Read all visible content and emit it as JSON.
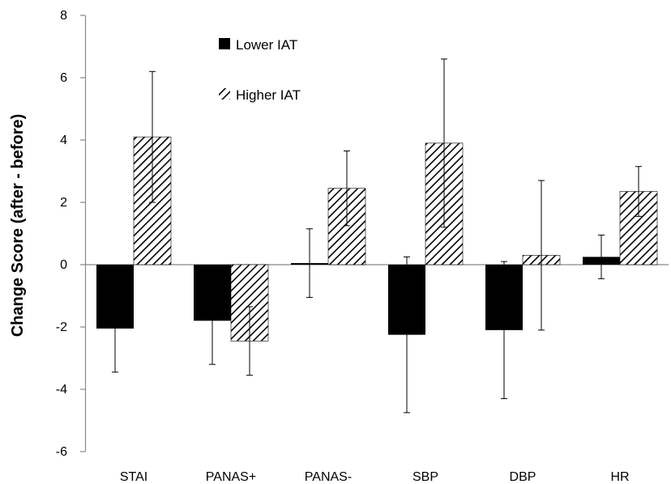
{
  "chart_data": {
    "type": "bar",
    "title": "",
    "xlabel": "",
    "ylabel": "Change Score (after - before)",
    "ylim": [
      -6,
      8
    ],
    "yticks": [
      -6,
      -4,
      -2,
      0,
      2,
      4,
      6,
      8
    ],
    "grid": false,
    "legend_position": "top-left",
    "categories": [
      "STAI",
      "PANAS+",
      "PANAS-",
      "SBP",
      "DBP",
      "HR"
    ],
    "series": [
      {
        "name": "Lower IAT",
        "fill": "solid",
        "color": "#000000",
        "values": [
          -2.05,
          -1.8,
          0.05,
          -2.25,
          -2.1,
          0.25
        ],
        "errors": [
          1.4,
          1.4,
          1.1,
          2.5,
          2.2,
          0.7
        ]
      },
      {
        "name": "Higher IAT",
        "fill": "hatched",
        "color": "#000000",
        "values": [
          4.1,
          -2.45,
          2.45,
          3.9,
          0.3,
          2.35
        ],
        "errors": [
          2.1,
          1.1,
          1.2,
          2.7,
          2.4,
          0.8
        ]
      }
    ]
  }
}
